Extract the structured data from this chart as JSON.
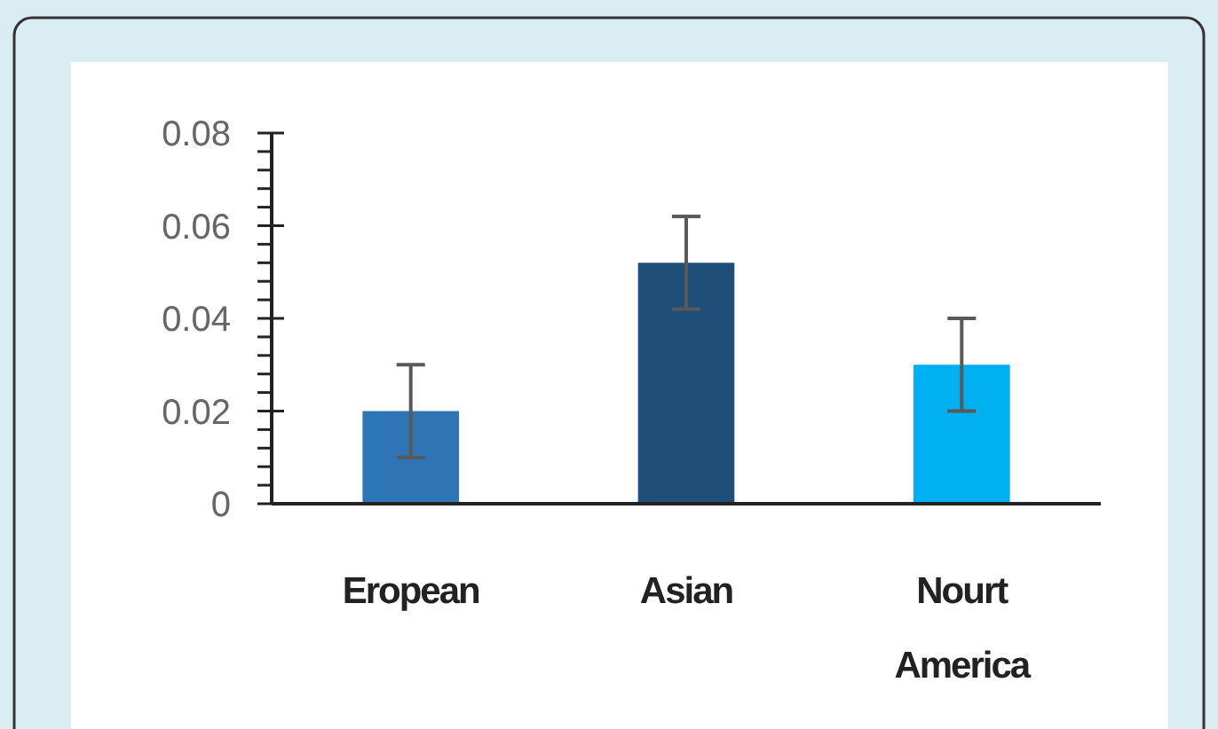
{
  "chart_data": {
    "type": "bar",
    "categories": [
      "Eropean",
      "Asian",
      "Nourt America"
    ],
    "values": [
      0.02,
      0.052,
      0.03
    ],
    "colors": [
      "#2e75b6",
      "#1f4e79",
      "#00b0f0"
    ],
    "errors": [
      0.01,
      0.01,
      0.01
    ],
    "ylim": [
      0,
      0.08
    ],
    "yticks": [
      0,
      {
        "value": 0.004,
        "label": null
      },
      {
        "value": 0.008,
        "label": null
      },
      {
        "value": 0.012,
        "label": null
      },
      {
        "value": 0.016,
        "label": null
      },
      0.02,
      {
        "value": 0.024,
        "label": null
      },
      {
        "value": 0.028,
        "label": null
      },
      {
        "value": 0.032,
        "label": null
      },
      {
        "value": 0.036,
        "label": null
      },
      0.04,
      {
        "value": 0.044,
        "label": null
      },
      {
        "value": 0.048,
        "label": null
      },
      {
        "value": 0.052,
        "label": null
      },
      {
        "value": 0.056,
        "label": null
      },
      0.06,
      {
        "value": 0.064,
        "label": null
      },
      {
        "value": 0.068,
        "label": null
      },
      {
        "value": 0.072,
        "label": null
      },
      {
        "value": 0.076,
        "label": null
      },
      0.08
    ],
    "grid": false
  }
}
